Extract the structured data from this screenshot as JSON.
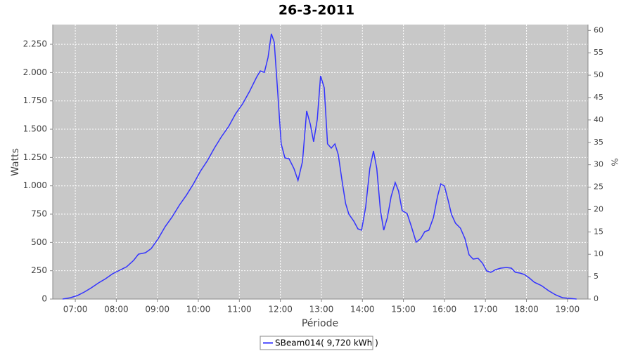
{
  "chart_data": {
    "type": "line",
    "title": "26-3-2011",
    "x_label": "Période",
    "y_label": "Watts",
    "y2_label": "%",
    "xlim": [
      6.45,
      19.5
    ],
    "xticks": [
      {
        "value": 7,
        "label": "07:00"
      },
      {
        "value": 8,
        "label": "08:00"
      },
      {
        "value": 9,
        "label": "09:00"
      },
      {
        "value": 10,
        "label": "10:00"
      },
      {
        "value": 11,
        "label": "11:00"
      },
      {
        "value": 12,
        "label": "12:00"
      },
      {
        "value": 13,
        "label": "13:00"
      },
      {
        "value": 14,
        "label": "14:00"
      },
      {
        "value": 15,
        "label": "15:00"
      },
      {
        "value": 16,
        "label": "16:00"
      },
      {
        "value": 17,
        "label": "17:00"
      },
      {
        "value": 18,
        "label": "18:00"
      },
      {
        "value": 19,
        "label": "19:00"
      }
    ],
    "ylim": [
      0,
      2424
    ],
    "yticks": [
      0,
      250,
      500,
      750,
      {
        "value": 1000,
        "label": "1.000"
      },
      {
        "value": 1250,
        "label": "1.250"
      },
      {
        "value": 1500,
        "label": "1.500"
      },
      {
        "value": 1750,
        "label": "1.750"
      },
      {
        "value": 2000,
        "label": "2.000"
      },
      {
        "value": 2250,
        "label": "2.250"
      }
    ],
    "y2lim": [
      0,
      61.3
    ],
    "y2ticks": [
      0,
      5,
      10,
      15,
      20,
      25,
      30,
      35,
      40,
      45,
      50,
      55,
      60
    ],
    "grid": true,
    "legend": "bottom",
    "x": [
      6.69,
      6.88,
      7.05,
      7.22,
      7.39,
      7.57,
      7.74,
      7.91,
      8.08,
      8.25,
      8.42,
      8.54,
      8.71,
      8.85,
      9.02,
      9.19,
      9.36,
      9.54,
      9.71,
      9.88,
      10.05,
      10.22,
      10.39,
      10.56,
      10.74,
      10.91,
      11.08,
      11.25,
      11.42,
      11.51,
      11.61,
      11.7,
      11.78,
      11.85,
      11.94,
      12.02,
      12.11,
      12.21,
      12.33,
      12.43,
      12.54,
      12.64,
      12.73,
      12.81,
      12.9,
      12.98,
      13.07,
      13.15,
      13.24,
      13.33,
      13.41,
      13.5,
      13.59,
      13.67,
      13.79,
      13.89,
      13.98,
      14.08,
      14.18,
      14.27,
      14.35,
      14.44,
      14.52,
      14.61,
      14.7,
      14.8,
      14.88,
      14.97,
      15.09,
      15.19,
      15.31,
      15.42,
      15.52,
      15.62,
      15.73,
      15.83,
      15.91,
      16.0,
      16.09,
      16.17,
      16.27,
      16.39,
      16.5,
      16.6,
      16.7,
      16.82,
      16.93,
      17.03,
      17.13,
      17.25,
      17.37,
      17.51,
      17.63,
      17.73,
      17.85,
      17.95,
      18.07,
      18.19,
      18.37,
      18.54,
      18.71,
      18.88,
      19.05,
      19.22
    ],
    "series": [
      {
        "name": "SBeam014( 9,720 kWh )",
        "color": "#3333ff",
        "values": [
          0,
          12,
          31,
          62,
          99,
          143,
          180,
          223,
          254,
          285,
          341,
          397,
          409,
          446,
          533,
          639,
          725,
          831,
          918,
          1017,
          1128,
          1221,
          1333,
          1432,
          1525,
          1637,
          1724,
          1835,
          1959,
          2015,
          2002,
          2133,
          2343,
          2269,
          1804,
          1370,
          1246,
          1240,
          1153,
          1048,
          1215,
          1662,
          1544,
          1389,
          1587,
          1971,
          1866,
          1370,
          1333,
          1370,
          1277,
          1054,
          843,
          750,
          688,
          620,
          608,
          812,
          1153,
          1308,
          1153,
          781,
          608,
          719,
          905,
          1029,
          955,
          781,
          756,
          645,
          502,
          533,
          595,
          608,
          719,
          905,
          1017,
          998,
          874,
          750,
          670,
          626,
          533,
          391,
          353,
          360,
          316,
          248,
          236,
          260,
          273,
          279,
          273,
          236,
          229,
          217,
          186,
          149,
          118,
          74,
          37,
          12,
          6,
          0
        ]
      }
    ]
  }
}
